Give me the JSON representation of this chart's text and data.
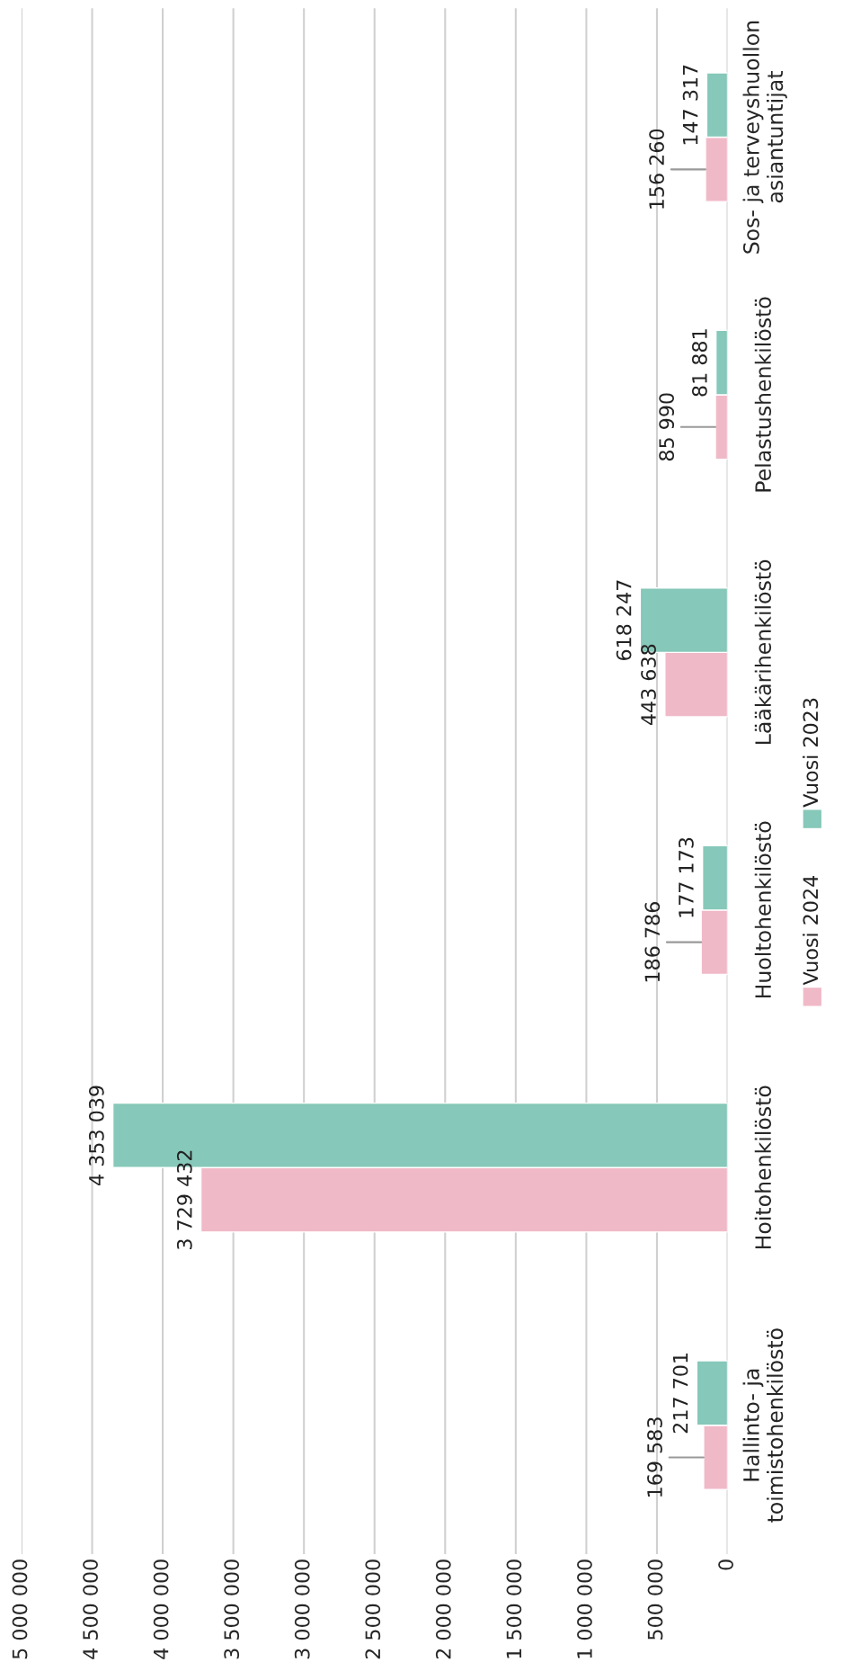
{
  "chart_data": {
    "type": "bar",
    "orientation": "horizontal",
    "categories": [
      "Sos- ja terveyshuollon\nasiantuntijat",
      "Pelastushenkilöstö",
      "Lääkärihenkilöstö",
      "Huoltohenkilöstö",
      "Hoitohenkilöstö",
      "Hallinto- ja\ntoimistohenkilöstö"
    ],
    "series": [
      {
        "name": "Vuosi 2024",
        "color": "#f0b9c8",
        "values": [
          156260,
          85990,
          443638,
          186786,
          3729432,
          169583
        ],
        "value_labels": [
          "156 260",
          "85 990",
          "443 638",
          "186 786",
          "3 729 432",
          "169 583"
        ]
      },
      {
        "name": "Vuosi 2023",
        "color": "#86c8b9",
        "values": [
          147317,
          81881,
          618247,
          177173,
          4353039,
          217701
        ],
        "value_labels": [
          "147 317",
          "81 881",
          "618 247",
          "177 173",
          "4 353 039",
          "217 701"
        ]
      }
    ],
    "xlim": [
      5000000,
      0
    ],
    "xticks": [
      {
        "value": 5000000,
        "label": "5 000 000"
      },
      {
        "value": 4500000,
        "label": "4 500 000"
      },
      {
        "value": 4000000,
        "label": "4 000 000"
      },
      {
        "value": 3500000,
        "label": "3 500 000"
      },
      {
        "value": 3000000,
        "label": "3 000 000"
      },
      {
        "value": 2500000,
        "label": "2 500 000"
      },
      {
        "value": 2000000,
        "label": "2 000 000"
      },
      {
        "value": 1500000,
        "label": "1 500 000"
      },
      {
        "value": 1000000,
        "label": "1 000 000"
      },
      {
        "value": 500000,
        "label": "500 000"
      },
      0
    ],
    "grid": "x",
    "legend": "right"
  }
}
